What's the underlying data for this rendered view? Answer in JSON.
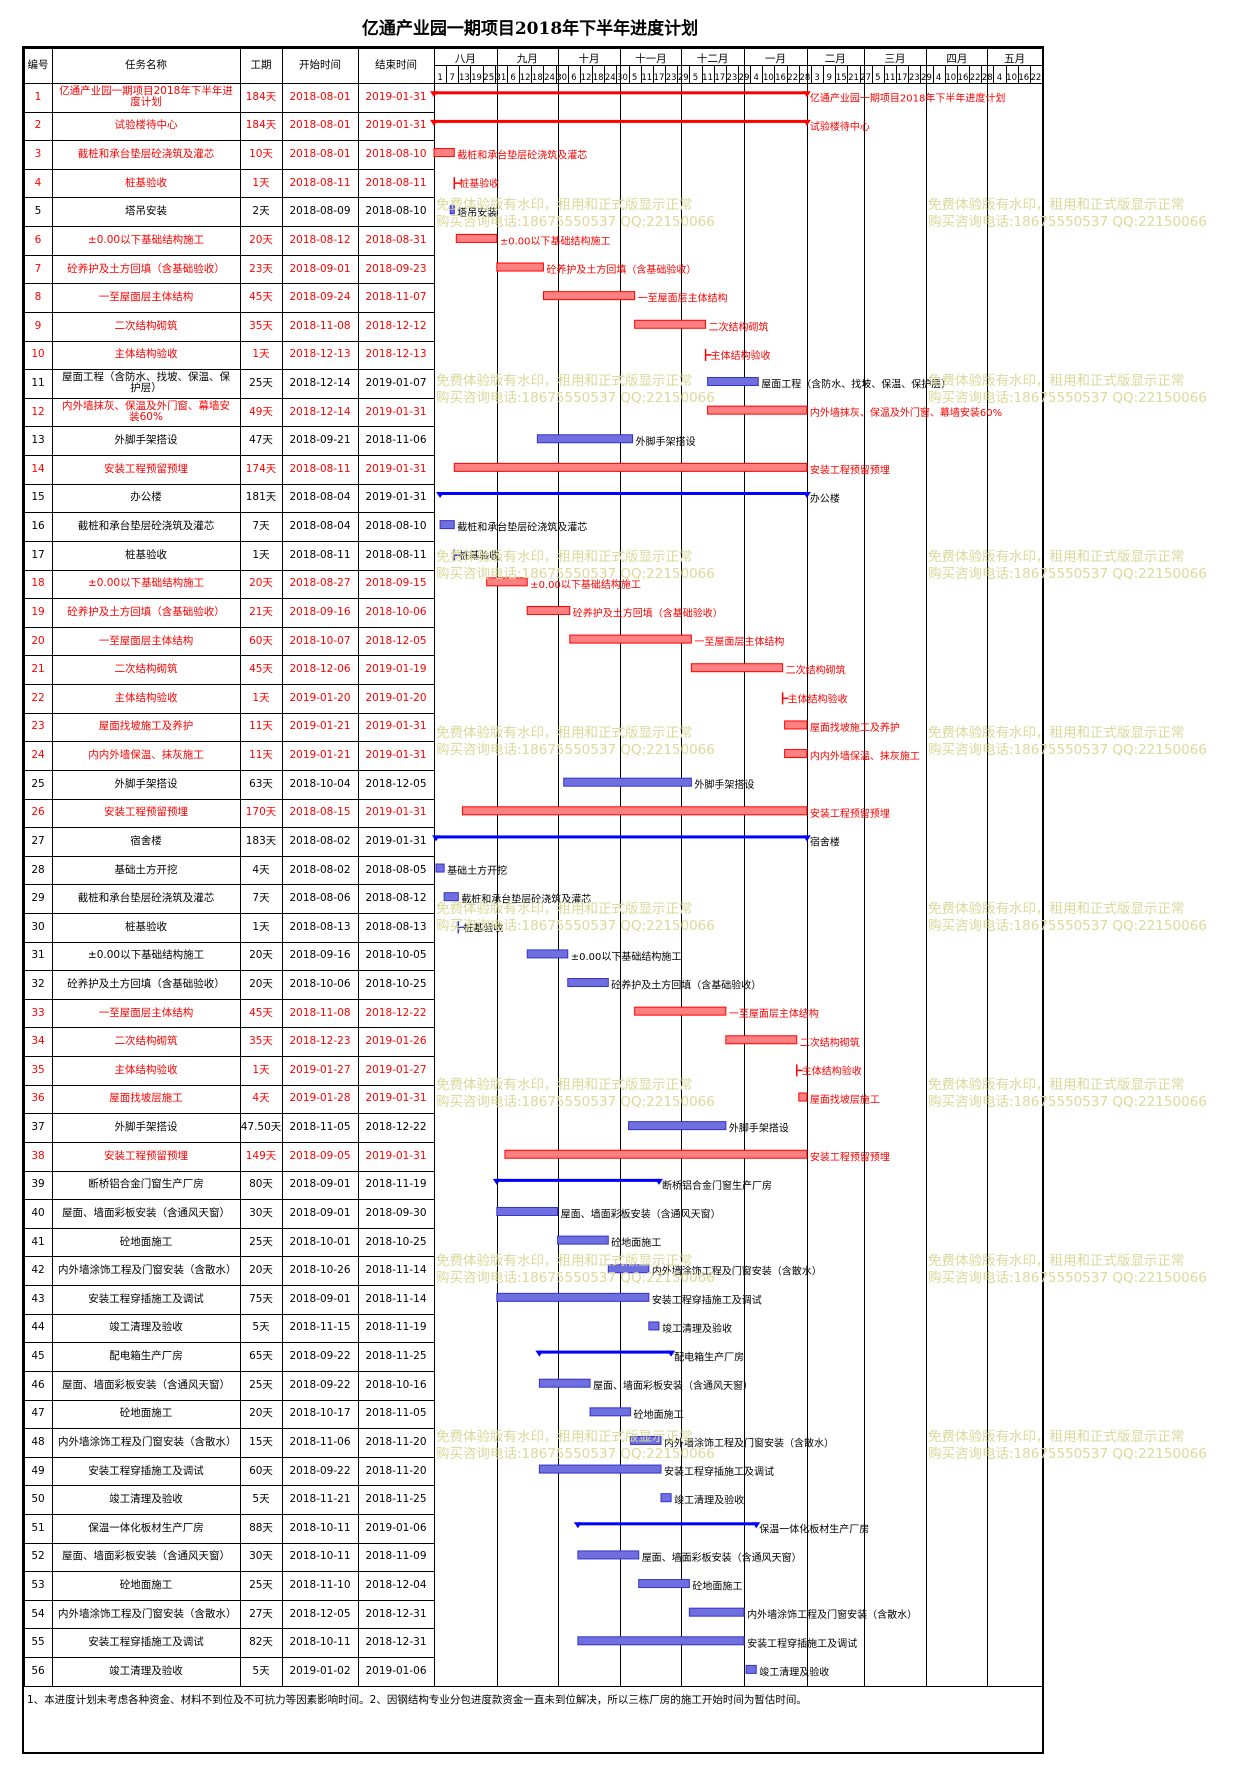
{
  "title": "亿通产业园一期项目2018年下半年进度计划",
  "headers": {
    "no": "编号",
    "name": "任务名称",
    "dur": "工期",
    "start": "开始时间",
    "end": "结束时间"
  },
  "months": [
    "八月",
    "九月",
    "十月",
    "十一月",
    "十二月",
    "一月",
    "二月",
    "三月",
    "四月",
    "五月"
  ],
  "days": [
    "1",
    "7",
    "13",
    "19",
    "25",
    "31",
    "6",
    "12",
    "18",
    "24",
    "30",
    "6",
    "12",
    "18",
    "24",
    "30",
    "5",
    "11",
    "17",
    "23",
    "29",
    "5",
    "11",
    "17",
    "23",
    "29",
    "4",
    "10",
    "16",
    "22",
    "28",
    "3",
    "9",
    "15",
    "21",
    "27",
    "5",
    "11",
    "17",
    "23",
    "29",
    "4",
    "10",
    "16",
    "22",
    "28",
    "4",
    "10",
    "16",
    "22"
  ],
  "footnote": "1、本进度计划未考虑各种资金、材料不到位及不可抗力等因素影响时间。2、因钢结构专业分包进度款资金一直未到位解决，所以三栋厂房的施工开始时间为暂估时间。",
  "watermark": {
    "line1": "免费体验版有水印，租用和正式版显示正常",
    "line2": "购买咨询电话:18675550537 QQ:22150066"
  },
  "colors": {
    "critical": "#ff0000",
    "normal": "#3333cc",
    "summary_blue": "#0000ff"
  },
  "tasks": [
    {
      "no": "1",
      "name": "亿通产业园一期项目2018年下半年进度计划",
      "dur": "184天",
      "start": "2018-08-01",
      "end": "2019-01-31",
      "red": true,
      "type": "summary"
    },
    {
      "no": "2",
      "name": "试验楼待中心",
      "dur": "184天",
      "start": "2018-08-01",
      "end": "2019-01-31",
      "red": true,
      "type": "summary"
    },
    {
      "no": "3",
      "name": "截桩和承台垫层砼浇筑及灌芯",
      "dur": "10天",
      "start": "2018-08-01",
      "end": "2018-08-10",
      "red": true,
      "type": "task"
    },
    {
      "no": "4",
      "name": "桩基验收",
      "dur": "1天",
      "start": "2018-08-11",
      "end": "2018-08-11",
      "red": true,
      "type": "milestone"
    },
    {
      "no": "5",
      "name": "塔吊安装",
      "dur": "2天",
      "start": "2018-08-09",
      "end": "2018-08-10",
      "red": false,
      "type": "task"
    },
    {
      "no": "6",
      "name": "±0.00以下基础结构施工",
      "dur": "20天",
      "start": "2018-08-12",
      "end": "2018-08-31",
      "red": true,
      "type": "task"
    },
    {
      "no": "7",
      "name": "砼养护及土方回填（含基础验收）",
      "dur": "23天",
      "start": "2018-09-01",
      "end": "2018-09-23",
      "red": true,
      "type": "task"
    },
    {
      "no": "8",
      "name": "一至屋面层主体结构",
      "dur": "45天",
      "start": "2018-09-24",
      "end": "2018-11-07",
      "red": true,
      "type": "task"
    },
    {
      "no": "9",
      "name": "二次结构砌筑",
      "dur": "35天",
      "start": "2018-11-08",
      "end": "2018-12-12",
      "red": true,
      "type": "task"
    },
    {
      "no": "10",
      "name": "主体结构验收",
      "dur": "1天",
      "start": "2018-12-13",
      "end": "2018-12-13",
      "red": true,
      "type": "milestone"
    },
    {
      "no": "11",
      "name": "屋面工程（含防水、找坡、保温、保护层）",
      "dur": "25天",
      "start": "2018-12-14",
      "end": "2019-01-07",
      "red": false,
      "type": "task"
    },
    {
      "no": "12",
      "name": "内外墙抹灰、保温及外门窗、幕墙安装60%",
      "dur": "49天",
      "start": "2018-12-14",
      "end": "2019-01-31",
      "red": true,
      "type": "task"
    },
    {
      "no": "13",
      "name": "外脚手架搭设",
      "dur": "47天",
      "start": "2018-09-21",
      "end": "2018-11-06",
      "red": false,
      "type": "task"
    },
    {
      "no": "14",
      "name": "安装工程预留预埋",
      "dur": "174天",
      "start": "2018-08-11",
      "end": "2019-01-31",
      "red": true,
      "type": "task"
    },
    {
      "no": "15",
      "name": "办公楼",
      "dur": "181天",
      "start": "2018-08-04",
      "end": "2019-01-31",
      "red": false,
      "type": "summary"
    },
    {
      "no": "16",
      "name": "截桩和承台垫层砼浇筑及灌芯",
      "dur": "7天",
      "start": "2018-08-04",
      "end": "2018-08-10",
      "red": false,
      "type": "task"
    },
    {
      "no": "17",
      "name": "桩基验收",
      "dur": "1天",
      "start": "2018-08-11",
      "end": "2018-08-11",
      "red": false,
      "type": "milestone"
    },
    {
      "no": "18",
      "name": "±0.00以下基础结构施工",
      "dur": "20天",
      "start": "2018-08-27",
      "end": "2018-09-15",
      "red": true,
      "type": "task"
    },
    {
      "no": "19",
      "name": "砼养护及土方回填（含基础验收）",
      "dur": "21天",
      "start": "2018-09-16",
      "end": "2018-10-06",
      "red": true,
      "type": "task"
    },
    {
      "no": "20",
      "name": "一至屋面层主体结构",
      "dur": "60天",
      "start": "2018-10-07",
      "end": "2018-12-05",
      "red": true,
      "type": "task"
    },
    {
      "no": "21",
      "name": "二次结构砌筑",
      "dur": "45天",
      "start": "2018-12-06",
      "end": "2019-01-19",
      "red": true,
      "type": "task"
    },
    {
      "no": "22",
      "name": "主体结构验收",
      "dur": "1天",
      "start": "2019-01-20",
      "end": "2019-01-20",
      "red": true,
      "type": "milestone"
    },
    {
      "no": "23",
      "name": "屋面找坡施工及养护",
      "dur": "11天",
      "start": "2019-01-21",
      "end": "2019-01-31",
      "red": true,
      "type": "task"
    },
    {
      "no": "24",
      "name": "内内外墙保温、抹灰施工",
      "dur": "11天",
      "start": "2019-01-21",
      "end": "2019-01-31",
      "red": true,
      "type": "task"
    },
    {
      "no": "25",
      "name": "外脚手架搭设",
      "dur": "63天",
      "start": "2018-10-04",
      "end": "2018-12-05",
      "red": false,
      "type": "task"
    },
    {
      "no": "26",
      "name": "安装工程预留预埋",
      "dur": "170天",
      "start": "2018-08-15",
      "end": "2019-01-31",
      "red": true,
      "type": "task"
    },
    {
      "no": "27",
      "name": "宿舍楼",
      "dur": "183天",
      "start": "2018-08-02",
      "end": "2019-01-31",
      "red": false,
      "type": "summary"
    },
    {
      "no": "28",
      "name": "基础土方开挖",
      "dur": "4天",
      "start": "2018-08-02",
      "end": "2018-08-05",
      "red": false,
      "type": "task"
    },
    {
      "no": "29",
      "name": "截桩和承台垫层砼浇筑及灌芯",
      "dur": "7天",
      "start": "2018-08-06",
      "end": "2018-08-12",
      "red": false,
      "type": "task"
    },
    {
      "no": "30",
      "name": "桩基验收",
      "dur": "1天",
      "start": "2018-08-13",
      "end": "2018-08-13",
      "red": false,
      "type": "milestone"
    },
    {
      "no": "31",
      "name": "±0.00以下基础结构施工",
      "dur": "20天",
      "start": "2018-09-16",
      "end": "2018-10-05",
      "red": false,
      "type": "task"
    },
    {
      "no": "32",
      "name": "砼养护及土方回填（含基础验收）",
      "dur": "20天",
      "start": "2018-10-06",
      "end": "2018-10-25",
      "red": false,
      "type": "task"
    },
    {
      "no": "33",
      "name": "一至屋面层主体结构",
      "dur": "45天",
      "start": "2018-11-08",
      "end": "2018-12-22",
      "red": true,
      "type": "task"
    },
    {
      "no": "34",
      "name": "二次结构砌筑",
      "dur": "35天",
      "start": "2018-12-23",
      "end": "2019-01-26",
      "red": true,
      "type": "task"
    },
    {
      "no": "35",
      "name": "主体结构验收",
      "dur": "1天",
      "start": "2019-01-27",
      "end": "2019-01-27",
      "red": true,
      "type": "milestone"
    },
    {
      "no": "36",
      "name": "屋面找坡层施工",
      "dur": "4天",
      "start": "2019-01-28",
      "end": "2019-01-31",
      "red": true,
      "type": "task"
    },
    {
      "no": "37",
      "name": "外脚手架搭设",
      "dur": "47.50天",
      "start": "2018-11-05",
      "end": "2018-12-22",
      "red": false,
      "type": "task"
    },
    {
      "no": "38",
      "name": "安装工程预留预埋",
      "dur": "149天",
      "start": "2018-09-05",
      "end": "2019-01-31",
      "red": true,
      "type": "task"
    },
    {
      "no": "39",
      "name": "断桥铝合金门窗生产厂房",
      "dur": "80天",
      "start": "2018-09-01",
      "end": "2018-11-19",
      "red": false,
      "type": "summary"
    },
    {
      "no": "40",
      "name": "屋面、墙面彩板安装（含通风天窗）",
      "dur": "30天",
      "start": "2018-09-01",
      "end": "2018-09-30",
      "red": false,
      "type": "task"
    },
    {
      "no": "41",
      "name": "砼地面施工",
      "dur": "25天",
      "start": "2018-10-01",
      "end": "2018-10-25",
      "red": false,
      "type": "task"
    },
    {
      "no": "42",
      "name": "内外墙涂饰工程及门窗安装（含散水）",
      "dur": "20天",
      "start": "2018-10-26",
      "end": "2018-11-14",
      "red": false,
      "type": "task"
    },
    {
      "no": "43",
      "name": "安装工程穿插施工及调试",
      "dur": "75天",
      "start": "2018-09-01",
      "end": "2018-11-14",
      "red": false,
      "type": "task"
    },
    {
      "no": "44",
      "name": "竣工清理及验收",
      "dur": "5天",
      "start": "2018-11-15",
      "end": "2018-11-19",
      "red": false,
      "type": "task"
    },
    {
      "no": "45",
      "name": "配电箱生产厂房",
      "dur": "65天",
      "start": "2018-09-22",
      "end": "2018-11-25",
      "red": false,
      "type": "summary"
    },
    {
      "no": "46",
      "name": "屋面、墙面彩板安装（含通风天窗）",
      "dur": "25天",
      "start": "2018-09-22",
      "end": "2018-10-16",
      "red": false,
      "type": "task"
    },
    {
      "no": "47",
      "name": "砼地面施工",
      "dur": "20天",
      "start": "2018-10-17",
      "end": "2018-11-05",
      "red": false,
      "type": "task"
    },
    {
      "no": "48",
      "name": "内外墙涂饰工程及门窗安装（含散水）",
      "dur": "15天",
      "start": "2018-11-06",
      "end": "2018-11-20",
      "red": false,
      "type": "task"
    },
    {
      "no": "49",
      "name": "安装工程穿插施工及调试",
      "dur": "60天",
      "start": "2018-09-22",
      "end": "2018-11-20",
      "red": false,
      "type": "task"
    },
    {
      "no": "50",
      "name": "竣工清理及验收",
      "dur": "5天",
      "start": "2018-11-21",
      "end": "2018-11-25",
      "red": false,
      "type": "task"
    },
    {
      "no": "51",
      "name": "保温一体化板材生产厂房",
      "dur": "88天",
      "start": "2018-10-11",
      "end": "2019-01-06",
      "red": false,
      "type": "summary"
    },
    {
      "no": "52",
      "name": "屋面、墙面彩板安装（含通风天窗）",
      "dur": "30天",
      "start": "2018-10-11",
      "end": "2018-11-09",
      "red": false,
      "type": "task"
    },
    {
      "no": "53",
      "name": "砼地面施工",
      "dur": "25天",
      "start": "2018-11-10",
      "end": "2018-12-04",
      "red": false,
      "type": "task"
    },
    {
      "no": "54",
      "name": "内外墙涂饰工程及门窗安装（含散水）",
      "dur": "27天",
      "start": "2018-12-05",
      "end": "2018-12-31",
      "red": false,
      "type": "task"
    },
    {
      "no": "55",
      "name": "安装工程穿插施工及调试",
      "dur": "82天",
      "start": "2018-10-11",
      "end": "2018-12-31",
      "red": false,
      "type": "task"
    },
    {
      "no": "56",
      "name": "竣工清理及验收",
      "dur": "5天",
      "start": "2019-01-02",
      "end": "2019-01-06",
      "red": false,
      "type": "task"
    }
  ]
}
